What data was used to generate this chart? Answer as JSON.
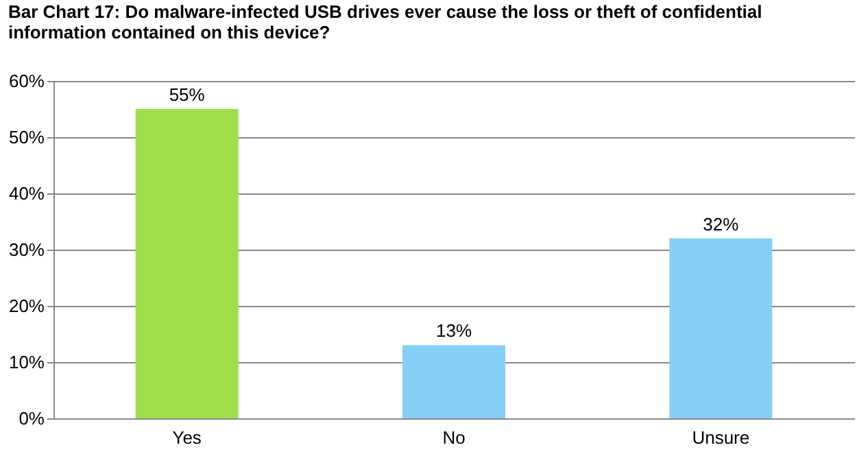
{
  "chart_data": {
    "type": "bar",
    "title": "Bar Chart 17: Do malware-infected USB drives ever cause the loss or theft of confidential\ninformation contained on this device?",
    "categories": [
      "Yes",
      "No",
      "Unsure"
    ],
    "values": [
      55,
      13,
      32
    ],
    "colors": [
      "#a0df4b",
      "#86cff6",
      "#86cff6"
    ],
    "value_labels": [
      "55%",
      "13%",
      "32%"
    ],
    "ylim": [
      0,
      60
    ],
    "yticks": [
      {
        "value": 0,
        "label": "0%"
      },
      {
        "value": 10,
        "label": "10%"
      },
      {
        "value": 20,
        "label": "20%"
      },
      {
        "value": 30,
        "label": "30%"
      },
      {
        "value": 40,
        "label": "40%"
      },
      {
        "value": 50,
        "label": "50%"
      },
      {
        "value": 60,
        "label": "60%"
      }
    ],
    "grid": "y"
  }
}
